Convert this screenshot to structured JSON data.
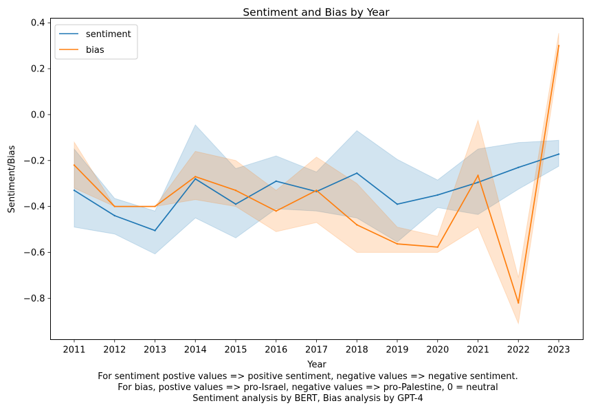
{
  "chart_data": {
    "type": "line",
    "title": "Sentiment and Bias by Year",
    "xlabel": "Year",
    "ylabel": "Sentiment/Bias",
    "x": [
      2011,
      2012,
      2013,
      2014,
      2015,
      2016,
      2017,
      2018,
      2019,
      2020,
      2021,
      2022,
      2023
    ],
    "xticks": [
      "2011",
      "2012",
      "2013",
      "2014",
      "2015",
      "2016",
      "2017",
      "2018",
      "2019",
      "2020",
      "2021",
      "2022",
      "2023"
    ],
    "ylim": [
      -0.98,
      0.42
    ],
    "yticks": [
      -0.8,
      -0.6,
      -0.4,
      -0.2,
      0.0,
      0.2,
      0.4
    ],
    "ytick_labels": [
      "−0.8",
      "−0.6",
      "−0.4",
      "−0.2",
      "0.0",
      "0.2",
      "0.4"
    ],
    "grid": false,
    "legend_position": "upper-left",
    "series": [
      {
        "name": "sentiment",
        "color": "#1f77b4",
        "values": [
          -0.33,
          -0.44,
          -0.505,
          -0.28,
          -0.39,
          -0.29,
          -0.335,
          -0.255,
          -0.39,
          -0.35,
          -0.295,
          -0.23,
          -0.172
        ],
        "ci_upper": [
          -0.15,
          -0.365,
          -0.42,
          -0.045,
          -0.235,
          -0.18,
          -0.25,
          -0.07,
          -0.195,
          -0.285,
          -0.15,
          -0.122,
          -0.112
        ],
        "ci_lower": [
          -0.49,
          -0.52,
          -0.607,
          -0.45,
          -0.537,
          -0.41,
          -0.42,
          -0.45,
          -0.555,
          -0.405,
          -0.435,
          -0.325,
          -0.225
        ]
      },
      {
        "name": "bias",
        "color": "#ff7f0e",
        "values": [
          -0.22,
          -0.4,
          -0.4,
          -0.27,
          -0.33,
          -0.42,
          -0.33,
          -0.48,
          -0.563,
          -0.577,
          -0.265,
          -0.82,
          0.3
        ],
        "ci_upper": [
          -0.12,
          -0.4,
          -0.4,
          -0.16,
          -0.2,
          -0.33,
          -0.185,
          -0.3,
          -0.49,
          -0.53,
          -0.025,
          -0.71,
          0.355
        ],
        "ci_lower": [
          -0.32,
          -0.4,
          -0.4,
          -0.37,
          -0.4,
          -0.51,
          -0.47,
          -0.6,
          -0.6,
          -0.6,
          -0.49,
          -0.91,
          0.24
        ]
      }
    ],
    "notes": [
      "For sentiment postive values => positive sentiment, negative values => negative sentiment.",
      "For bias, postive values => pro-Israel, negative values => pro-Palestine, 0 = neutral",
      "Sentiment analysis by BERT, Bias analysis by GPT-4"
    ]
  }
}
